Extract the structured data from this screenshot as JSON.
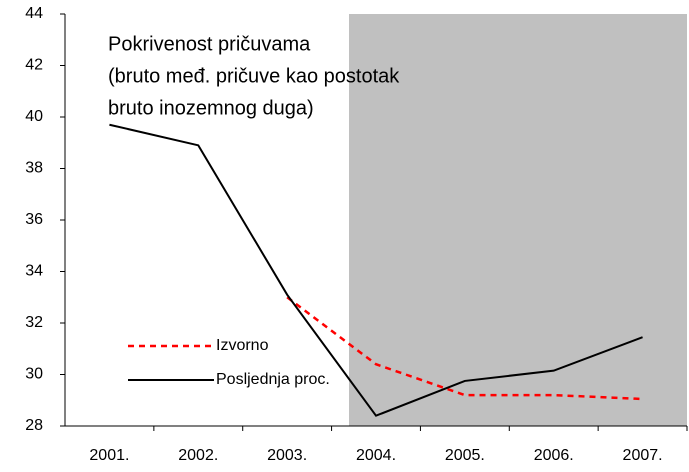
{
  "chart_data": {
    "type": "line",
    "title": [
      "Pokrivenost pričuvama",
      "(bruto međ. pričuve kao postotak",
      "bruto inozemnog duga)"
    ],
    "categories": [
      "2001.",
      "2002.",
      "2003.",
      "2004.",
      "2005.",
      "2006.",
      "2007."
    ],
    "series": [
      {
        "name": "Izvorno",
        "color": "#ff0000",
        "dash": true,
        "values": [
          null,
          null,
          33.0,
          30.4,
          29.2,
          29.2,
          29.05
        ]
      },
      {
        "name": "Posljednja proc.",
        "color": "#000000",
        "dash": false,
        "values": [
          39.7,
          38.9,
          33.1,
          28.4,
          29.75,
          30.15,
          31.45
        ]
      }
    ],
    "ylim": [
      28,
      44
    ],
    "yticks": [
      28,
      30,
      32,
      34,
      36,
      38,
      40,
      42,
      44
    ],
    "grid": false
  }
}
